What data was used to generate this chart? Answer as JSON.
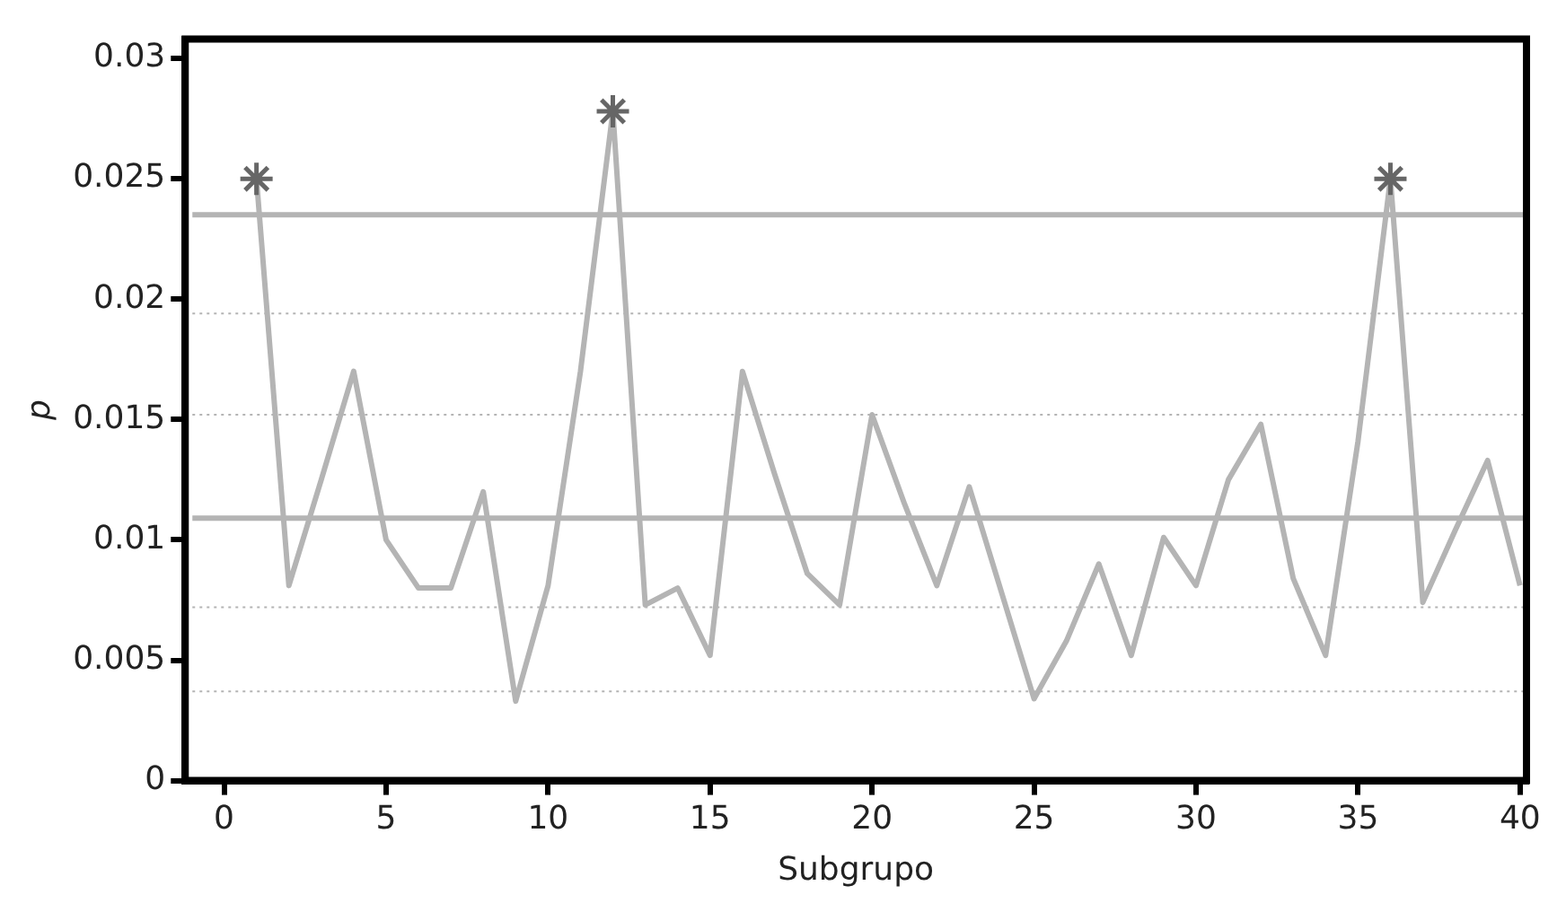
{
  "chart_data": {
    "type": "line",
    "xlabel": "Subgrupo",
    "ylabel": "p",
    "xlim": [
      -1.2,
      40.2
    ],
    "xticks": [
      0,
      5,
      10,
      15,
      20,
      25,
      30,
      35,
      40
    ],
    "ylim": [
      0,
      0.0308
    ],
    "yticks": [
      0,
      0.005,
      0.01,
      0.015,
      0.02,
      0.025,
      0.03
    ],
    "grid": false,
    "legend": false,
    "series": [
      {
        "color": "#b4b4b4",
        "marker": "none",
        "x": [
          1,
          2,
          3,
          4,
          5,
          6,
          7,
          8,
          9,
          10,
          11,
          12,
          13,
          14,
          15,
          16,
          17,
          18,
          19,
          20,
          21,
          22,
          23,
          24,
          25,
          26,
          27,
          28,
          29,
          30,
          31,
          32,
          33,
          34,
          35,
          36,
          37,
          38,
          39,
          40
        ],
        "values": [
          0.025,
          0.0081,
          0.0125,
          0.017,
          0.01,
          0.008,
          0.008,
          0.012,
          0.0033,
          0.0081,
          0.017,
          0.0278,
          0.0073,
          0.008,
          0.0052,
          0.017,
          0.0127,
          0.0086,
          0.0073,
          0.0152,
          0.0115,
          0.0081,
          0.0122,
          0.0078,
          0.0034,
          0.0058,
          0.009,
          0.0052,
          0.0101,
          0.0081,
          0.0125,
          0.0148,
          0.0084,
          0.0052,
          0.0141,
          0.025,
          0.0074,
          0.0104,
          0.0133,
          0.0081
        ]
      },
      {
        "type": "scatter",
        "color": "#666666",
        "marker": "cross",
        "x": [
          1,
          12,
          36
        ],
        "values": [
          0.025,
          0.0278,
          0.025
        ]
      }
    ],
    "ref_lines": [
      {
        "axis": "y",
        "value": 0.0235,
        "color": "#b4b4b4",
        "line_style": "solid"
      },
      {
        "axis": "y",
        "value": 0.0109,
        "color": "#b4b4b4",
        "line_style": "solid"
      },
      {
        "axis": "y",
        "value": 0.0194,
        "color": "#b4b4b4",
        "line_style": "dotted"
      },
      {
        "axis": "y",
        "value": 0.0152,
        "color": "#b4b4b4",
        "line_style": "dotted"
      },
      {
        "axis": "y",
        "value": 0.0072,
        "color": "#b4b4b4",
        "line_style": "dotted"
      },
      {
        "axis": "y",
        "value": 0.0037,
        "color": "#b4b4b4",
        "line_style": "dotted"
      }
    ]
  }
}
